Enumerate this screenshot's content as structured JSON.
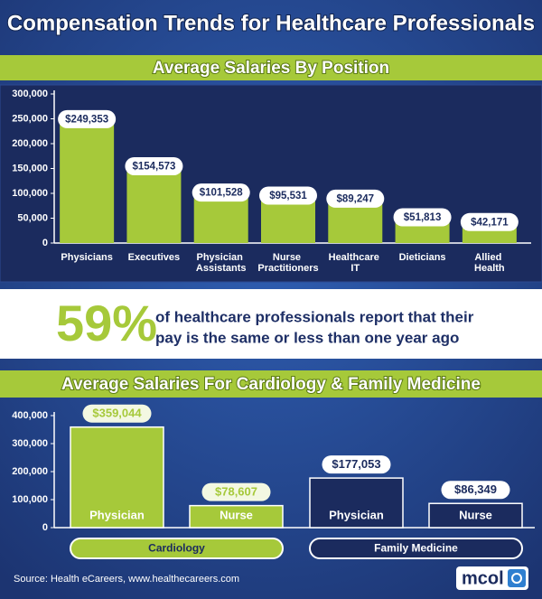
{
  "header": {
    "title": "Compensation Trends for Healthcare Professionals"
  },
  "chart_data": [
    {
      "type": "bar",
      "title": "Average Salaries By Position",
      "categories": [
        "Physicians",
        "Executives",
        "Physician Assistants",
        "Nurse Practitioners",
        "Healthcare IT",
        "Dieticians",
        "Allied Health"
      ],
      "values": [
        249353,
        154573,
        101528,
        95531,
        89247,
        51813,
        42171
      ],
      "value_labels": [
        "$249,353",
        "$154,573",
        "$101,528",
        "$95,531",
        "$89,247",
        "$51,813",
        "$42,171"
      ],
      "color": "#a6c93a",
      "ylim": [
        0,
        300000
      ],
      "yticks": [
        0,
        {
          "value": 50000,
          "label": "50,000"
        },
        {
          "value": 100000,
          "label": "100,000"
        },
        {
          "value": 150000,
          "label": "150,000"
        },
        {
          "value": 200000,
          "label": "200,000"
        },
        {
          "value": 250000,
          "label": "250,000"
        },
        {
          "value": 300000,
          "label": "300,000"
        }
      ]
    },
    {
      "type": "bar",
      "title": "Average Salaries For Cardiology & Family Medicine",
      "categories": [
        "Physician",
        "Nurse"
      ],
      "series": [
        {
          "name": "Cardiology",
          "color": "#a6c93a",
          "values": [
            359044,
            78607
          ],
          "value_labels": [
            "$359,044",
            "$78,607"
          ]
        },
        {
          "name": "Family Medicine",
          "color": "#1b2b5e",
          "values": [
            177053,
            86349
          ],
          "value_labels": [
            "$177,053",
            "$86,349"
          ]
        }
      ],
      "ylim": [
        0,
        400000
      ],
      "yticks": [
        0,
        {
          "value": 100000,
          "label": "100,000"
        },
        {
          "value": 200000,
          "label": "200,000"
        },
        {
          "value": 300000,
          "label": "300,000"
        },
        {
          "value": 400000,
          "label": "400,000"
        }
      ]
    }
  ],
  "stat": {
    "figure": "59%",
    "lines": [
      "of healthcare professionals report that their",
      "pay is the same or less than one year ago"
    ]
  },
  "source": "Source: Health eCareers, www.healthecareers.com",
  "logo": "mcol"
}
